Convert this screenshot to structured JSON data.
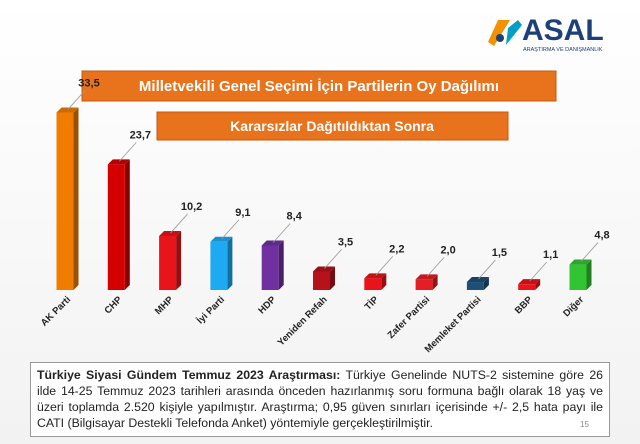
{
  "logo": {
    "name": "ASAL",
    "tagline": "ARAŞTIRMA VE DANIŞMANLIK"
  },
  "chart_data": {
    "type": "bar",
    "title": "Milletvekili Genel Seçimi İçin Partilerin Oy Dağılımı",
    "subtitle": "Kararsızlar Dağıtıldıktan Sonra",
    "categories": [
      "AK Parti",
      "CHP",
      "MHP",
      "İyi Parti",
      "HDP",
      "Yeniden Refah",
      "TİP",
      "Zafer Partisi",
      "Memleket Partisi",
      "BBP",
      "Diğer"
    ],
    "values": [
      33.5,
      23.7,
      10.2,
      9.1,
      8.4,
      3.5,
      2.2,
      2.0,
      1.5,
      1.1,
      4.8
    ],
    "value_labels": [
      "33,5",
      "23,7",
      "10,2",
      "9,1",
      "8,4",
      "3,5",
      "2,2",
      "2,0",
      "1,5",
      "1,1",
      "4,8"
    ],
    "colors": [
      "#f07d00",
      "#d40000",
      "#e8141a",
      "#1eaaf0",
      "#7030a0",
      "#b5121b",
      "#e8141a",
      "#e41e25",
      "#1f4e79",
      "#e8141a",
      "#33c433"
    ]
  },
  "footnote": {
    "heading": "Türkiye Siyasi Gündem Temmuz 2023 Araştırması:",
    "text": "Türkiye Genelinde NUTS-2 sistemine göre 26 ilde 14-25 Temmuz 2023 tarihleri arasında önceden hazırlanmış soru formuna bağlı olarak 18 yaş ve üzeri toplamda 2.520 kişiyle yapılmıştır. Araştırma; 0,95 güven sınırları içerisinde +/- 2,5 hata payı ile CATI (Bilgisayar Destekli Telefonda Anket) yöntemiyle gerçekleştirilmiştir."
  },
  "page_number": "15"
}
